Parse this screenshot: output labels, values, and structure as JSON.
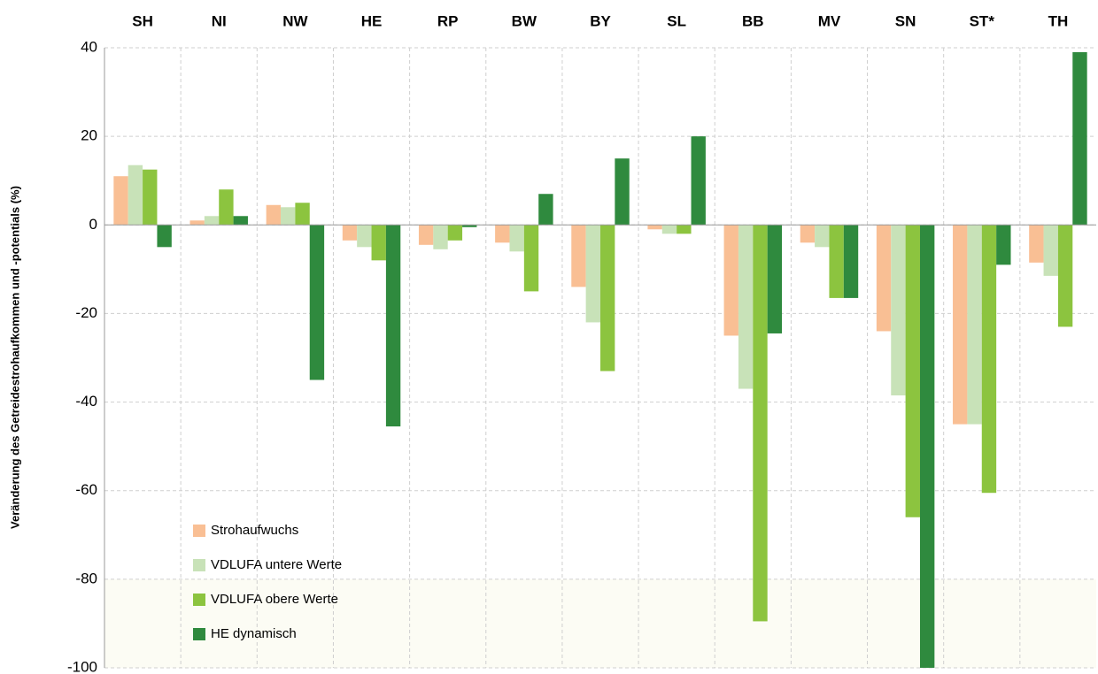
{
  "chart_data": {
    "type": "bar",
    "y_label": "Veränderung des Getreidestrohaufkommen und -potentials (%)",
    "categories": [
      "SH",
      "NI",
      "NW",
      "HE",
      "RP",
      "BW",
      "BY",
      "SL",
      "BB",
      "MV",
      "SN",
      "ST*",
      "TH"
    ],
    "series": [
      {
        "name": "Strohaufwuchs",
        "color": "#f9bf94",
        "values": [
          11,
          1,
          4.5,
          -3.5,
          -4.5,
          -4,
          -14,
          -1,
          -25,
          -4,
          -24,
          -45,
          -8.5
        ]
      },
      {
        "name": "VDLUFA untere Werte",
        "color": "#c8e2b8",
        "values": [
          13.5,
          2,
          4,
          -5,
          -5.5,
          -6,
          -22,
          -2,
          -37,
          -5,
          -38.5,
          -45,
          -11.5
        ]
      },
      {
        "name": "VDLUFA obere Werte",
        "color": "#8cc43f",
        "values": [
          12.5,
          8,
          5,
          -8,
          -3.5,
          -15,
          -33,
          -2,
          -89.5,
          -16.5,
          -66,
          -60.5,
          -23
        ]
      },
      {
        "name": "HE dynamisch",
        "color": "#2f8a3e",
        "values": [
          -5,
          2,
          -35,
          -45.5,
          -0.5,
          7,
          15,
          20,
          -24.5,
          -16.5,
          -100,
          -9,
          39
        ]
      }
    ],
    "ylim": [
      -100,
      40
    ],
    "yticks": [
      -100,
      -80,
      -60,
      -40,
      -20,
      0,
      20,
      40
    ],
    "grid": true
  }
}
